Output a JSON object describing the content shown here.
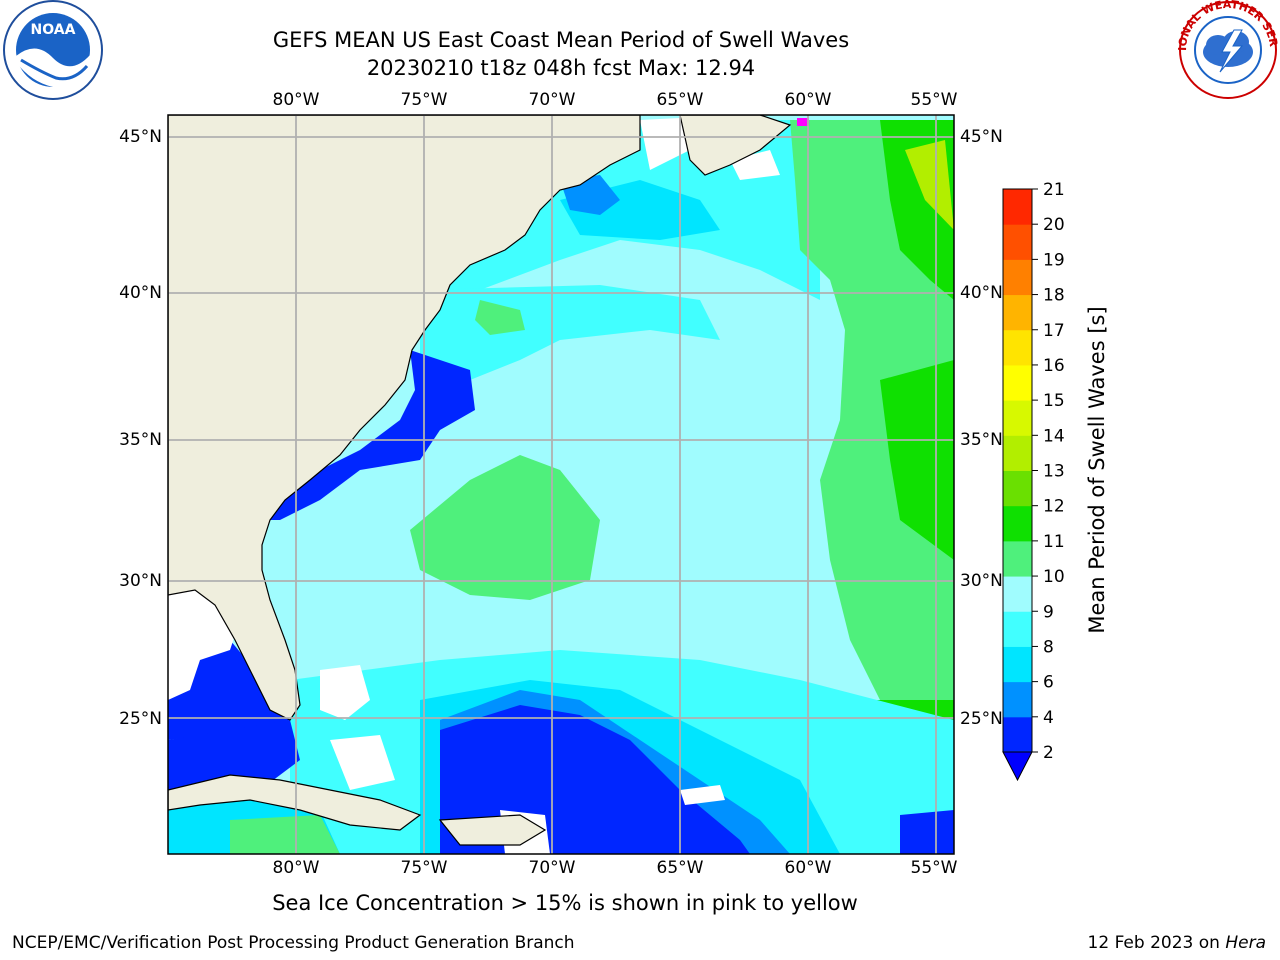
{
  "header": {
    "title": "GEFS MEAN US East Coast Mean Period of Swell Waves",
    "subtitle": "20230210 t18z 048h fcst   Max: 12.94"
  },
  "logos": {
    "left": {
      "text": "NOAA"
    },
    "right": {
      "text": "NATIONAL WEATHER SERVICE"
    }
  },
  "map": {
    "lon_labels": [
      "80°W",
      "75°W",
      "70°W",
      "65°W",
      "60°W",
      "55°W"
    ],
    "lat_labels": [
      "45°N",
      "40°N",
      "35°N",
      "30°N",
      "25°N"
    ],
    "colors": {
      "land": "#efeedd",
      "no_data": "#ffffff",
      "grid": "#b0b0b0",
      "ice": "#ff00ff"
    }
  },
  "colorbar": {
    "label": "Mean Period of Swell Waves [s]",
    "ticks": [
      "2",
      "4",
      "6",
      "8",
      "9",
      "10",
      "11",
      "12",
      "13",
      "14",
      "15",
      "16",
      "17",
      "18",
      "19",
      "20",
      "21"
    ],
    "colors": [
      "#0026ff",
      "#0091ff",
      "#00e5ff",
      "#41ffff",
      "#a0fcfe",
      "#4ff07c",
      "#0fe001",
      "#6ae001",
      "#b2ee00",
      "#d7f900",
      "#ffff00",
      "#ffe400",
      "#ffb400",
      "#ff8000",
      "#ff5000",
      "#ff2800",
      "#ff0000"
    ],
    "under_color": "#0000ff"
  },
  "caption": "Sea Ice Concentration > 15% is shown in pink to yellow",
  "footer": {
    "left": "NCEP/EMC/Verification Post Processing Product Generation Branch",
    "right_prefix": "12 Feb 2023 on ",
    "right_host": "Hera"
  }
}
